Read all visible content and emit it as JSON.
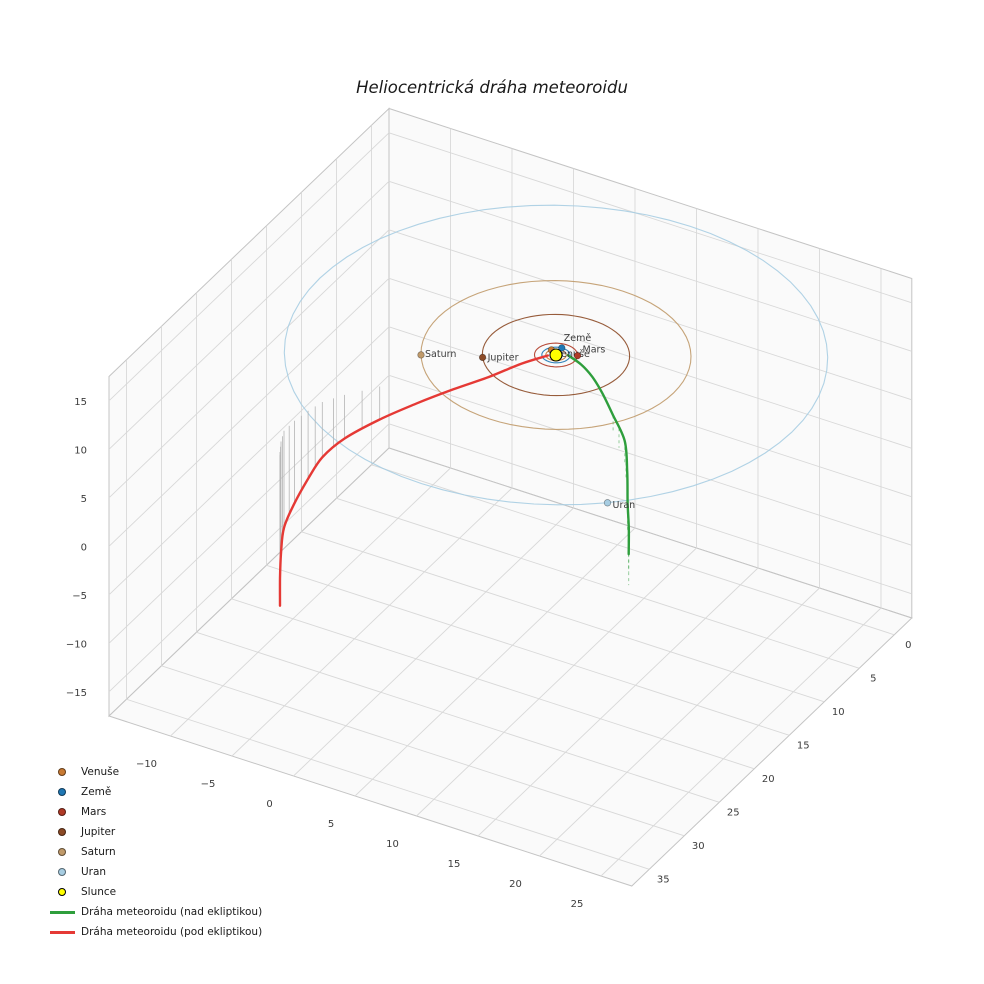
{
  "title": "Heliocentrická dráha meteoroidu",
  "chart_data": {
    "type": "line",
    "subtype": "3d-trajectory",
    "title": "Heliocentrická dráha meteoroidu",
    "background": "#ffffff",
    "grid": true,
    "legend_position": "lower-left",
    "axes": {
      "x": {
        "range": [
          -15,
          27.5
        ],
        "tick_values": [
          -10,
          -5,
          0,
          5,
          10,
          15,
          20,
          25
        ],
        "tick_labels": [
          "−10",
          "−5",
          "0",
          "5",
          "10",
          "15",
          "20",
          "25"
        ]
      },
      "y": {
        "range": [
          -2.5,
          37.5
        ],
        "tick_values": [
          0,
          5,
          10,
          15,
          20,
          25,
          30,
          35
        ],
        "tick_labels": [
          "0",
          "5",
          "10",
          "15",
          "20",
          "25",
          "30",
          "35"
        ]
      },
      "z": {
        "range": [
          -17.5,
          17.5
        ],
        "tick_values": [
          -15,
          -10,
          -5,
          0,
          5,
          10,
          15
        ],
        "tick_labels": [
          "−15",
          "−10",
          "−5",
          "0",
          "5",
          "10",
          "15"
        ]
      }
    },
    "sun": {
      "name": "Slunce",
      "pos": [
        0,
        0,
        0
      ],
      "color": "#ffff00",
      "edge_color": "#000000"
    },
    "planets": [
      {
        "name": "Venuše",
        "pos": [
          -0.6,
          -0.4,
          0
        ],
        "orbit_radius": 0.72,
        "color": "#c87a33",
        "label_offset": [
          4,
          7
        ]
      },
      {
        "name": "Země",
        "pos": [
          -0.1,
          -1.0,
          0
        ],
        "orbit_radius": 1.0,
        "color": "#1f77b4",
        "label_offset": [
          2,
          -7
        ]
      },
      {
        "name": "Mars",
        "pos": [
          1.35,
          -0.7,
          0
        ],
        "orbit_radius": 1.52,
        "color": "#b03a26",
        "label_offset": [
          5,
          -3
        ]
      },
      {
        "name": "Jupiter",
        "pos": [
          -4.3,
          2.93,
          0
        ],
        "orbit_radius": 5.2,
        "color": "#8c4a26",
        "label_offset": [
          5,
          3
        ]
      },
      {
        "name": "Saturn",
        "pos": [
          -8.2,
          4.88,
          0
        ],
        "orbit_radius": 9.54,
        "color": "#c09a6a",
        "label_offset": [
          4,
          2
        ]
      },
      {
        "name": "Uran",
        "pos": [
          12.5,
          14.6,
          0
        ],
        "orbit_radius": 19.2,
        "color": "#a7cde2",
        "label_offset": [
          5,
          5
        ]
      }
    ],
    "meteoroid": {
      "above": {
        "label": "Dráha meteoroidu (nad ekliptikou)",
        "color": "#2e9e3c",
        "points": [
          [
            0.8,
            -0.3,
            0.1
          ],
          [
            2.5,
            0.8,
            0.6
          ],
          [
            4.2,
            2.2,
            1.0
          ],
          [
            6.0,
            4.0,
            1.4
          ],
          [
            8.4,
            6.6,
            1.8
          ],
          [
            11.0,
            9.5,
            2.2
          ],
          [
            13.3,
            13.2,
            2.6
          ],
          [
            15.5,
            17.0,
            2.9
          ],
          [
            17.3,
            20.0,
            3.1
          ],
          [
            19.0,
            23.0,
            3.2
          ]
        ]
      },
      "below": {
        "label": "Dráha meteoroidu (pod ekliptikou)",
        "color": "#e53935",
        "points": [
          [
            -0.5,
            0.3,
            -0.05
          ],
          [
            -1.8,
            1.8,
            -0.4
          ],
          [
            -3.3,
            3.8,
            -1.0
          ],
          [
            -5.1,
            5.7,
            -1.7
          ],
          [
            -6.9,
            7.7,
            -2.5
          ],
          [
            -8.7,
            9.9,
            -3.4
          ],
          [
            -10.3,
            12.1,
            -4.5
          ],
          [
            -11.2,
            13.7,
            -5.7
          ],
          [
            -11.5,
            15.2,
            -7.0
          ],
          [
            -11.7,
            16.8,
            -8.5
          ],
          [
            -11.7,
            18.3,
            -10.0
          ],
          [
            -11.2,
            19.6,
            -11.5
          ],
          [
            -10.6,
            20.8,
            -13.0
          ],
          [
            -10.2,
            21.5,
            -15.2
          ]
        ]
      }
    },
    "legend": {
      "items": [
        {
          "label": "Venuše",
          "marker": "dot",
          "color": "#c87a33"
        },
        {
          "label": "Země",
          "marker": "dot",
          "color": "#1f77b4"
        },
        {
          "label": "Mars",
          "marker": "dot",
          "color": "#b03a26"
        },
        {
          "label": "Jupiter",
          "marker": "dot",
          "color": "#8c4a26"
        },
        {
          "label": "Saturn",
          "marker": "dot",
          "color": "#c09a6a"
        },
        {
          "label": "Uran",
          "marker": "dot",
          "color": "#a7cde2"
        },
        {
          "label": "Slunce",
          "marker": "dot",
          "color": "#ffff00",
          "edge": "#000000"
        },
        {
          "label": "Dráha meteoroidu (nad ekliptikou)",
          "marker": "line",
          "color": "#2e9e3c"
        },
        {
          "label": "Dráha meteoroidu (pod ekliptikou)",
          "marker": "line",
          "color": "#e53935"
        }
      ]
    }
  }
}
